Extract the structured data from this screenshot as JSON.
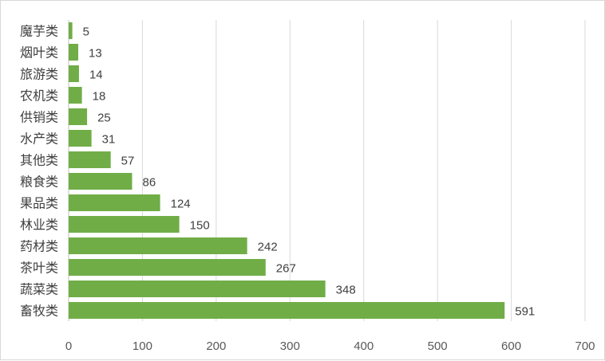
{
  "chart_data": {
    "type": "bar",
    "orientation": "horizontal",
    "categories": [
      "魔芋类",
      "烟叶类",
      "旅游类",
      "农机类",
      "供销类",
      "水产类",
      "其他类",
      "粮食类",
      "果品类",
      "林业类",
      "药材类",
      "茶叶类",
      "蔬菜类",
      "畜牧类"
    ],
    "values": [
      5,
      13,
      14,
      18,
      25,
      31,
      57,
      86,
      124,
      150,
      242,
      267,
      348,
      591
    ],
    "xticks": [
      0,
      100,
      200,
      300,
      400,
      500,
      600,
      700
    ],
    "xlim": [
      0,
      700
    ],
    "grid": true,
    "bar_color": "#70ad47",
    "legend": "none"
  }
}
